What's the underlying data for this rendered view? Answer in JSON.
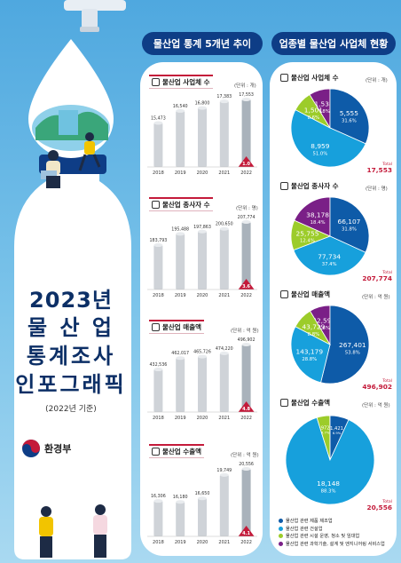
{
  "colors": {
    "primary": "#0e3d86",
    "accent": "#c41a3a",
    "bar_fill": "#cfd3d8",
    "bar_top": "#e8ebee",
    "pie": [
      "#0e5ba8",
      "#17a0dc",
      "#9ccc2a",
      "#7a1f87"
    ]
  },
  "cover": {
    "title_year": "2023년",
    "title_line2": "물 산 업",
    "title_line3": "통계조사",
    "title_line4": "인포그래픽",
    "note": "(2022년 기준)",
    "ministry": "환경부"
  },
  "sections": {
    "left_header": "물산업 통계 5개년 추이",
    "right_header": "업종별 물산업 사업체 현황"
  },
  "chart_data": [
    {
      "type": "bar",
      "title": "물산업 사업체 수",
      "unit": "(단위 : 개)",
      "categories": [
        "2018",
        "2019",
        "2020",
        "2021",
        "2022"
      ],
      "values": [
        15473,
        16540,
        16800,
        17383,
        17553
      ],
      "value_labels": [
        "15,473",
        "16,540",
        "16,800",
        "17,383",
        "17,553"
      ],
      "growth_label": "1.0"
    },
    {
      "type": "bar",
      "title": "물산업 종사자 수",
      "unit": "(단위 : 명)",
      "categories": [
        "2018",
        "2019",
        "2020",
        "2021",
        "2022"
      ],
      "values": [
        183793,
        195488,
        197863,
        200650,
        207774
      ],
      "value_labels": [
        "183,793",
        "195,488",
        "197,863",
        "200,650",
        "207,774"
      ],
      "growth_label": "3.6"
    },
    {
      "type": "bar",
      "title": "물산업 매출액",
      "unit": "(단위 : 억 원)",
      "categories": [
        "2018",
        "2019",
        "2020",
        "2021",
        "2022"
      ],
      "values": [
        432536,
        462017,
        465726,
        474220,
        496902
      ],
      "value_labels": [
        "432,536",
        "462,017",
        "465,726",
        "474,220",
        "496,902"
      ],
      "growth_label": "4.8"
    },
    {
      "type": "bar",
      "title": "물산업 수출액",
      "unit": "(단위 : 억 원)",
      "categories": [
        "2018",
        "2019",
        "2020",
        "2021",
        "2022"
      ],
      "values": [
        16306,
        16180,
        16650,
        19749,
        20556
      ],
      "value_labels": [
        "16,306",
        "16,180",
        "16,650",
        "19,749",
        "20,556"
      ],
      "growth_label": "4.1"
    },
    {
      "type": "pie",
      "title": "물산업 사업체 수",
      "unit": "(단위 : 개)",
      "slices": [
        {
          "value": 5555,
          "value_label": "5,555",
          "pct_label": "31.6%"
        },
        {
          "value": 8959,
          "value_label": "8,959",
          "pct_label": "51.0%"
        },
        {
          "value": 1501,
          "value_label": "1,501",
          "pct_label": "8.6%"
        },
        {
          "value": 1538,
          "value_label": "1,538",
          "pct_label": "8.8%"
        }
      ],
      "total_label": "Total",
      "total": "17,553"
    },
    {
      "type": "pie",
      "title": "물산업 종사자 수",
      "unit": "(단위 : 명)",
      "slices": [
        {
          "value": 66107,
          "value_label": "66,107",
          "pct_label": "31.8%"
        },
        {
          "value": 77734,
          "value_label": "77,734",
          "pct_label": "37.4%"
        },
        {
          "value": 25755,
          "value_label": "25,755",
          "pct_label": "12.4%"
        },
        {
          "value": 38178,
          "value_label": "38,178",
          "pct_label": "18.4%"
        }
      ],
      "total_label": "Total",
      "total": "207,774"
    },
    {
      "type": "pie",
      "title": "물산업 매출액",
      "unit": "(단위 : 억 원)",
      "slices": [
        {
          "value": 267401,
          "value_label": "267,401",
          "pct_label": "53.8%"
        },
        {
          "value": 143179,
          "value_label": "143,179",
          "pct_label": "28.8%"
        },
        {
          "value": 43729,
          "value_label": "43,729",
          "pct_label": "8.8%"
        },
        {
          "value": 42593,
          "value_label": "42,593",
          "pct_label": "8.6%"
        }
      ],
      "total_label": "Total",
      "total": "496,902"
    },
    {
      "type": "pie",
      "title": "물산업 수출액",
      "unit": "(단위 : 억 원)",
      "slices": [
        {
          "value": 1421,
          "value_label": "1,421",
          "pct_label": "6.9%"
        },
        {
          "value": 18148,
          "value_label": "18,148",
          "pct_label": "88.3%"
        },
        {
          "value": 972,
          "value_label": "972",
          "pct_label": "4.7%"
        },
        {
          "value": 15,
          "value_label": "15",
          "pct_label": "0.1%"
        }
      ],
      "total_label": "Total",
      "total": "20,556"
    }
  ],
  "legend": [
    "물산업 관련 제품 제조업",
    "물산업 관련 건설업",
    "물산업 관련 시설 운영, 청소 및 임대업",
    "물산업 관련 과학기술, 설계 및 엔지니어링 서비스업"
  ]
}
